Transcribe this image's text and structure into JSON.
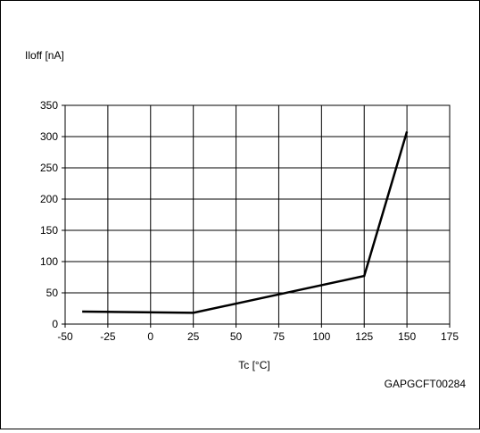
{
  "chart_data": {
    "type": "line",
    "title": "",
    "ylabel": "Iloff [nA]",
    "xlabel": "Tc [°C]",
    "xlim": [
      -50,
      175
    ],
    "ylim": [
      0,
      350
    ],
    "xticks": [
      -50,
      -25,
      0,
      25,
      50,
      75,
      100,
      125,
      150,
      175
    ],
    "yticks": [
      0,
      50,
      100,
      150,
      200,
      250,
      300,
      350
    ],
    "grid": true,
    "series": [
      {
        "x": [
          -40,
          25,
          125,
          150
        ],
        "y": [
          20,
          18,
          77,
          308
        ]
      }
    ]
  },
  "figure_code": "GAPGCFT00284",
  "colors": {
    "line": "#000000",
    "grid": "#000000",
    "background": "#ffffff"
  }
}
